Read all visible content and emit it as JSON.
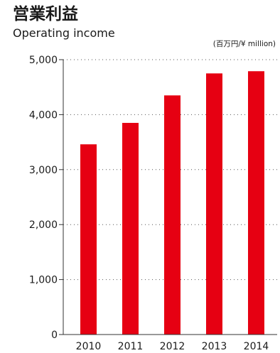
{
  "chart_data": {
    "type": "bar",
    "title": "営業利益",
    "subtitle": "Operating income",
    "unit_label": "(百万円/¥ million)",
    "categories": [
      "2010",
      "2011",
      "2012",
      "2013",
      "2014"
    ],
    "values": [
      3460,
      3850,
      4350,
      4750,
      4790
    ],
    "ylim": [
      0,
      5000
    ],
    "yticks": [
      0,
      1000,
      2000,
      3000,
      4000,
      5000
    ],
    "ytick_labels": [
      "0",
      "1,000",
      "2,000",
      "3,000",
      "4,000",
      "5,000"
    ],
    "grid": true,
    "grid_style": "dotted",
    "bar_color": "#e60012",
    "legend": "none"
  }
}
